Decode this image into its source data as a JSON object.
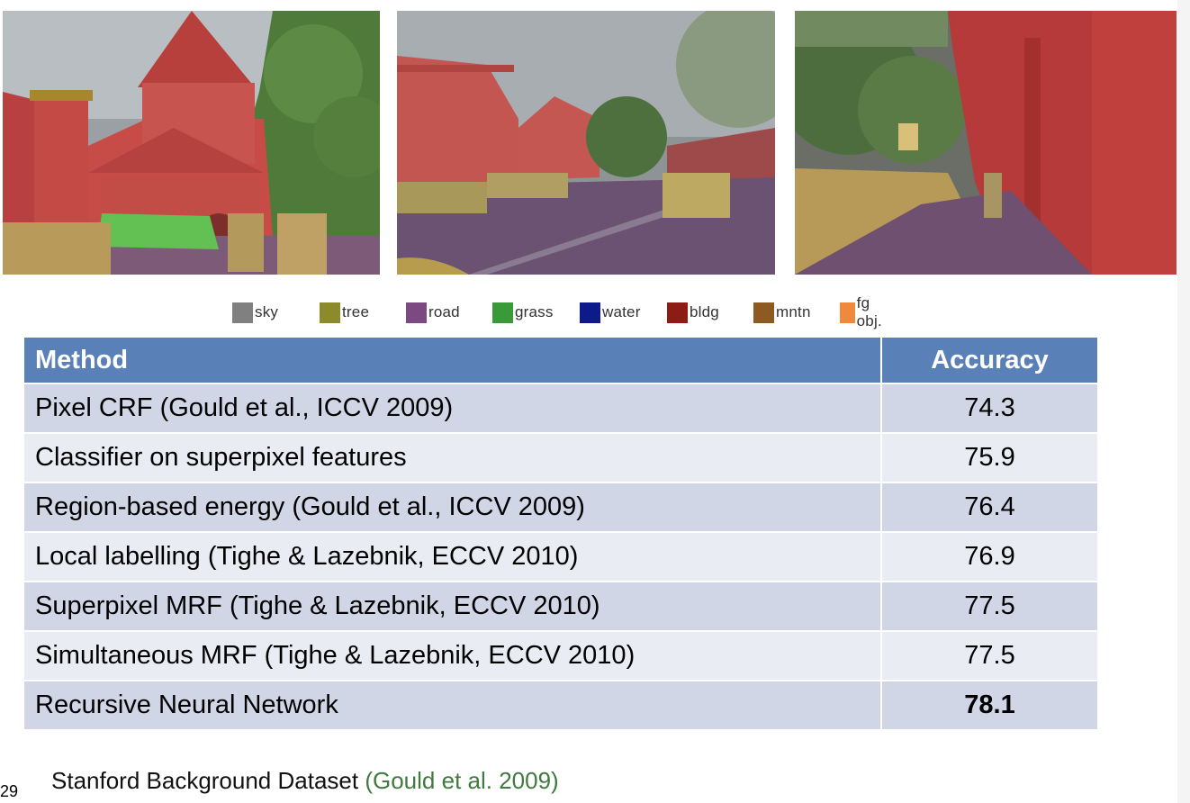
{
  "legend": [
    {
      "label": "sky",
      "color": "#808080"
    },
    {
      "label": "tree",
      "color": "#8c8a2c"
    },
    {
      "label": "road",
      "color": "#7a4a80"
    },
    {
      "label": "grass",
      "color": "#3a9a3a"
    },
    {
      "label": "water",
      "color": "#0e1a8a"
    },
    {
      "label": "bldg",
      "color": "#8c1c14"
    },
    {
      "label": "mntn",
      "color": "#8c5a22"
    },
    {
      "label": "fg obj.",
      "color": "#f0893c"
    }
  ],
  "table": {
    "headers": {
      "method": "Method",
      "accuracy": "Accuracy"
    },
    "rows": [
      {
        "method": "Pixel CRF (Gould et al., ICCV 2009)",
        "accuracy": "74.3"
      },
      {
        "method": "Classifier on superpixel features",
        "accuracy": "75.9"
      },
      {
        "method": "Region-based energy (Gould et al., ICCV 2009)",
        "accuracy": "76.4"
      },
      {
        "method": "Local labelling (Tighe & Lazebnik, ECCV 2010)",
        "accuracy": "76.9"
      },
      {
        "method": "Superpixel MRF (Tighe & Lazebnik, ECCV 2010)",
        "accuracy": "77.5"
      },
      {
        "method": "Simultaneous MRF (Tighe & Lazebnik, ECCV 2010)",
        "accuracy": "77.5"
      },
      {
        "method": "Recursive Neural Network",
        "accuracy": "78.1"
      }
    ]
  },
  "footer": {
    "slide_number": "29",
    "caption": "Stanford Background Dataset",
    "citation": "(Gould et al. 2009)"
  }
}
